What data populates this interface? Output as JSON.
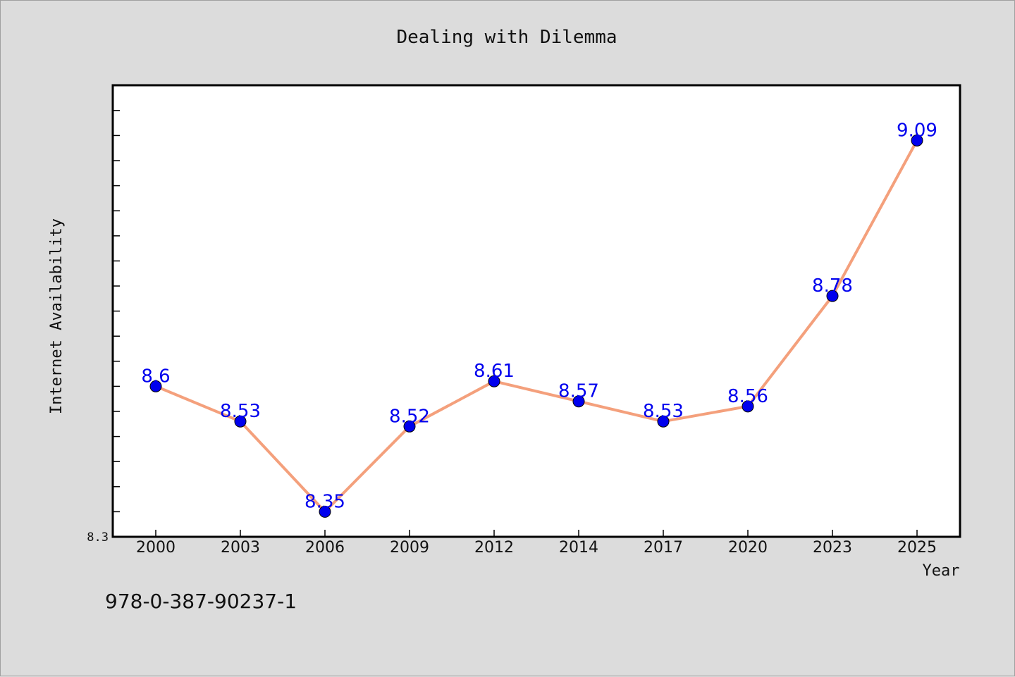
{
  "chart_data": {
    "type": "line",
    "title": "Dealing with Dilemma",
    "xlabel": "Year",
    "ylabel": "Internet Availability",
    "categories": [
      "2000",
      "2003",
      "2006",
      "2009",
      "2012",
      "2014",
      "2017",
      "2020",
      "2023",
      "2025"
    ],
    "series": [
      {
        "values": [
          8.6,
          8.53,
          8.35,
          8.52,
          8.61,
          8.57,
          8.53,
          8.56,
          8.78,
          9.09
        ]
      }
    ],
    "data_labels": [
      "8.6",
      "8.53",
      "8.35",
      "8.52",
      "8.61",
      "8.57",
      "8.53",
      "8.56",
      "8.78",
      "9.09"
    ],
    "ylim": [
      8.3,
      9.2
    ],
    "ytick_labels": [
      "8.3"
    ],
    "grid": false,
    "line_color": "#f4a07c",
    "marker_color": "#0000ee",
    "label_color": "#0000ee",
    "plot_background": "#ffffff",
    "page_background": "#dcdcdc"
  },
  "footer": {
    "isbn": "978-0-387-90237-1"
  }
}
